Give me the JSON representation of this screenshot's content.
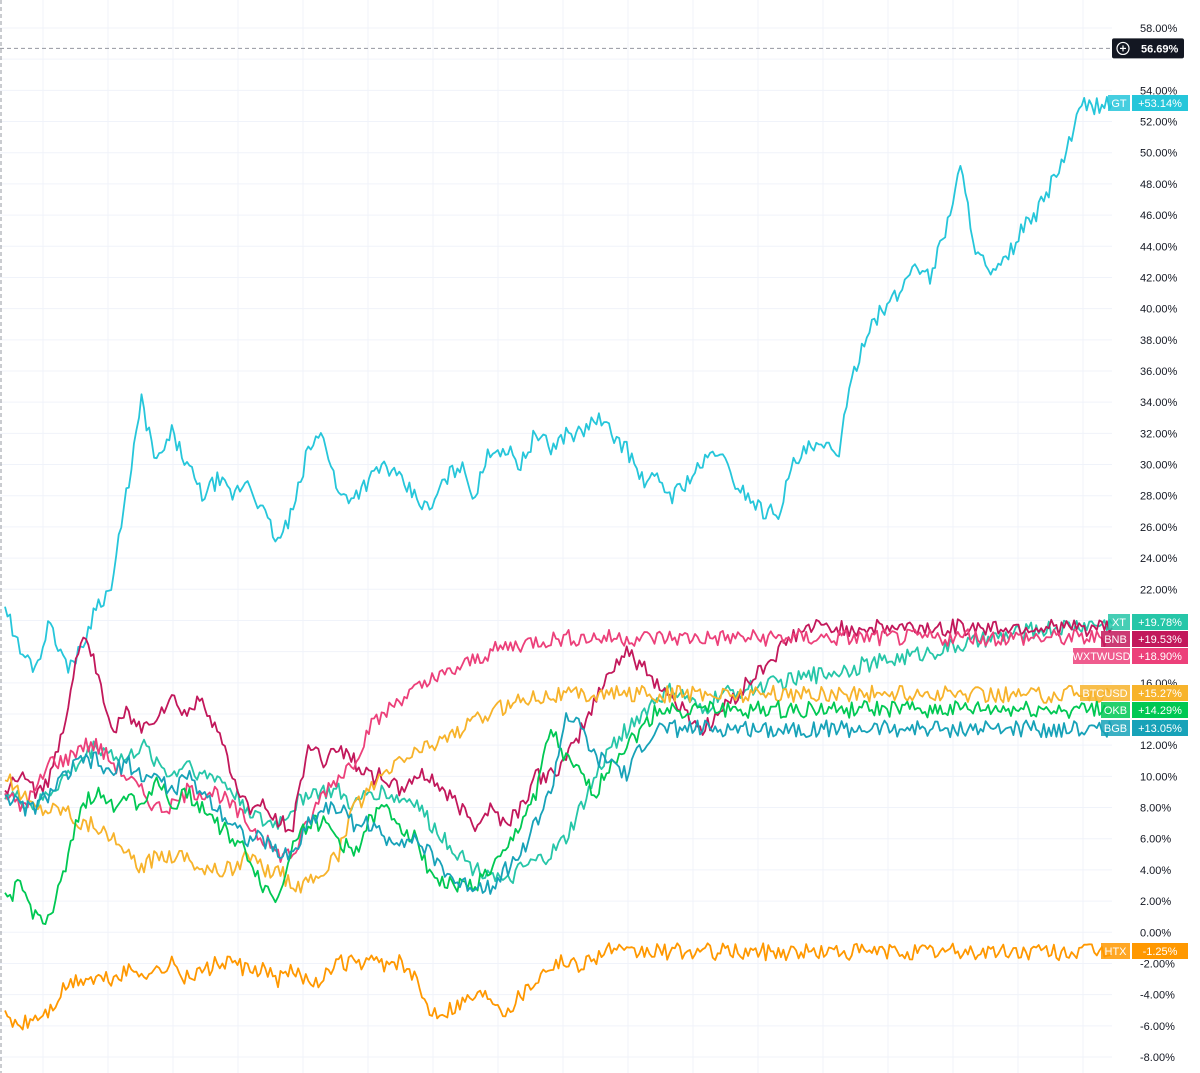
{
  "chart_data": {
    "type": "line",
    "xlabel": "",
    "ylabel": "",
    "y_unit": "%",
    "ylim": [
      -8.8,
      60
    ],
    "grid": true,
    "y_ticks": [
      58,
      56,
      54,
      52,
      50,
      48,
      46,
      44,
      42,
      40,
      38,
      36,
      34,
      32,
      30,
      28,
      26,
      24,
      22,
      20,
      18,
      16,
      14,
      12,
      10,
      8,
      6,
      4,
      2,
      0,
      -2,
      -4,
      -6,
      -8
    ],
    "y_tick_labels": [
      "58.00%",
      "",
      "54.00%",
      "52.00%",
      "50.00%",
      "48.00%",
      "46.00%",
      "44.00%",
      "42.00%",
      "40.00%",
      "38.00%",
      "36.00%",
      "34.00%",
      "32.00%",
      "30.00%",
      "28.00%",
      "26.00%",
      "24.00%",
      "22.00%",
      "",
      "",
      "16.00%",
      "",
      "12.00%",
      "10.00%",
      "8.00%",
      "6.00%",
      "4.00%",
      "2.00%",
      "0.00%",
      "-2.00%",
      "-4.00%",
      "-6.00%",
      "-8.00%"
    ],
    "crosshair": {
      "value": 56.69,
      "label": "56.69%",
      "icon": "plus-circle-icon"
    },
    "x_index_max": 73,
    "series": [
      {
        "name": "GT",
        "color": "#26c6da",
        "last_value": "+53.14%",
        "values": [
          21,
          18,
          17,
          20,
          17,
          18,
          21,
          22,
          28,
          34,
          30,
          32,
          30,
          28,
          29,
          28,
          29,
          27,
          25,
          27,
          31,
          32,
          28,
          28,
          29,
          30,
          29,
          28,
          27,
          29,
          30,
          28,
          31,
          31,
          30,
          32,
          31,
          32,
          32,
          33,
          32,
          31,
          29,
          29,
          28,
          29,
          30,
          31,
          29,
          28,
          27,
          27,
          30,
          31,
          31,
          31,
          36,
          39,
          40,
          41,
          43,
          42,
          45,
          49,
          44,
          42,
          43,
          45,
          46,
          48,
          50,
          53,
          53,
          53.14
        ]
      },
      {
        "name": "XT",
        "color": "#26c6a8",
        "last_value": "+19.78%",
        "values": [
          9,
          8.5,
          8,
          9,
          10,
          11,
          12,
          11.5,
          11,
          12,
          11,
          10,
          11,
          10,
          10,
          9,
          8,
          7,
          7,
          8,
          9,
          9,
          9,
          8,
          9,
          9,
          8.5,
          8.5,
          7,
          6,
          5,
          4,
          4,
          3,
          4,
          4.5,
          5,
          6,
          8,
          10,
          12,
          13,
          14,
          15,
          15.5,
          15,
          14,
          15.2,
          15.4,
          15.6,
          15.8,
          16,
          16.2,
          16.4,
          16.6,
          16.8,
          17,
          17.2,
          17.4,
          17.6,
          17.8,
          18,
          18.2,
          18.4,
          18.6,
          18.8,
          19,
          19.2,
          19.4,
          19.5,
          19.6,
          19.7,
          19.75,
          19.78
        ]
      },
      {
        "name": "BNB",
        "color": "#c2185b",
        "last_value": "+19.53%",
        "values": [
          9,
          10,
          9,
          10,
          14,
          19,
          17,
          13,
          14,
          13,
          14,
          15,
          14,
          15,
          13,
          10,
          8,
          8,
          7,
          7,
          12,
          11,
          12,
          11,
          10,
          10,
          9,
          10,
          10,
          9,
          8,
          7,
          8,
          7,
          8,
          10,
          10,
          11,
          13,
          15,
          17,
          18,
          17,
          16,
          15,
          14,
          13,
          14,
          15,
          16,
          17,
          18,
          19,
          19.5,
          19.53,
          19.53,
          19.53,
          19.53,
          19.53,
          19.53,
          19.53,
          19.53,
          19.53,
          19.53,
          19.53,
          19.53,
          19.53,
          19.53,
          19.53,
          19.53,
          19.53,
          19.53,
          19.53,
          19.53
        ]
      },
      {
        "name": "WXTWUSD",
        "color": "#ec407a",
        "last_value": "+18.90%",
        "values": [
          9,
          8,
          9,
          11,
          11,
          12,
          12,
          11,
          10,
          9,
          8,
          8,
          9,
          9,
          9,
          8,
          7,
          6,
          5,
          5,
          7,
          9,
          10,
          11,
          13,
          14,
          15,
          15.5,
          16,
          16.5,
          17,
          17.5,
          18,
          18.3,
          18.5,
          18.7,
          18.8,
          18.9,
          18.9,
          18.9,
          18.9,
          18.9,
          18.9,
          18.9,
          18.9,
          18.9,
          18.9,
          18.9,
          18.9,
          18.9,
          18.9,
          18.9,
          18.9,
          18.9,
          18.9,
          18.9,
          18.9,
          18.9,
          18.9,
          18.9,
          18.9,
          18.9,
          18.9,
          18.9,
          18.9,
          18.9,
          18.9,
          18.9,
          18.9,
          18.9,
          18.9,
          18.9,
          18.9,
          18.9
        ]
      },
      {
        "name": "BTCUSD",
        "color": "#f7b32b",
        "last_value": "+15.27%",
        "values": [
          10,
          9,
          8,
          8,
          8,
          7,
          7,
          6,
          5,
          4,
          5,
          5,
          5,
          4,
          4,
          4,
          5,
          4,
          4,
          3,
          3,
          4,
          5,
          8,
          9,
          10,
          11,
          11.5,
          12,
          12.5,
          13,
          13.5,
          14,
          14.5,
          15,
          15.2,
          15.27,
          15.27,
          15.27,
          15.27,
          15.27,
          15.27,
          15.27,
          15.27,
          15.27,
          15.27,
          15.27,
          15.27,
          15.27,
          15.27,
          15.27,
          15.27,
          15.27,
          15.27,
          15.27,
          15.27,
          15.27,
          15.27,
          15.27,
          15.27,
          15.27,
          15.27,
          15.27,
          15.27,
          15.27,
          15.27,
          15.27,
          15.27,
          15.27,
          15.27,
          15.27,
          15.27,
          15.27,
          15.27
        ]
      },
      {
        "name": "OKB",
        "color": "#00c853",
        "last_value": "+14.29%",
        "values": [
          2,
          3,
          1,
          1,
          4,
          8,
          9,
          8,
          9,
          8,
          10,
          8,
          9,
          8,
          7,
          6,
          5,
          3,
          2,
          6,
          7,
          7,
          6,
          5,
          7,
          8,
          7,
          6,
          4,
          3,
          3,
          3,
          4,
          5,
          7,
          9,
          13,
          11,
          10,
          9,
          11,
          12,
          13,
          14.29,
          14.29,
          14.29,
          14.29,
          14.29,
          14.29,
          14.29,
          14.29,
          14.29,
          14.29,
          14.29,
          14.29,
          14.29,
          14.29,
          14.29,
          14.29,
          14.29,
          14.29,
          14.29,
          14.29,
          14.29,
          14.29,
          14.29,
          14.29,
          14.29,
          14.29,
          14.29,
          14.29,
          14.29,
          14.29,
          14.29
        ]
      },
      {
        "name": "BGB",
        "color": "#17a2b8",
        "last_value": "+13.05%",
        "values": [
          9,
          8,
          8,
          9,
          10,
          11,
          11,
          10,
          11,
          10,
          10,
          9,
          10,
          9,
          8,
          7,
          6,
          6,
          5,
          5,
          7,
          8,
          8,
          7,
          7,
          6,
          6,
          6,
          5,
          4,
          3,
          3,
          3,
          4,
          5,
          7,
          9,
          14,
          13,
          11,
          11,
          10,
          12,
          13.05,
          13.05,
          13.05,
          13.05,
          13.05,
          13.05,
          13.05,
          13.05,
          13.05,
          13.05,
          13.05,
          13.05,
          13.05,
          13.05,
          13.05,
          13.05,
          13.05,
          13.05,
          13.05,
          13.05,
          13.05,
          13.05,
          13.05,
          13.05,
          13.05,
          13.05,
          13.05,
          13.05,
          13.05,
          13.05,
          13.05
        ]
      },
      {
        "name": "HTX",
        "color": "#ff9800",
        "last_value": "-1.25%",
        "values": [
          -5.5,
          -6,
          -5.5,
          -5,
          -3.5,
          -3,
          -3,
          -3,
          -2.5,
          -2.5,
          -2.5,
          -2,
          -3,
          -2.5,
          -2,
          -2,
          -2.5,
          -2.5,
          -3,
          -2.5,
          -3,
          -3,
          -2,
          -2,
          -2,
          -2,
          -2,
          -3,
          -5,
          -5,
          -4.5,
          -4,
          -4,
          -5,
          -4,
          -3,
          -2,
          -2,
          -2,
          -1.5,
          -1,
          -1.5,
          -1.25,
          -1.25,
          -1.25,
          -1.25,
          -1.25,
          -1.25,
          -1.25,
          -1.25,
          -1.25,
          -1.25,
          -1.25,
          -1.25,
          -1.25,
          -1.25,
          -1.25,
          -1.25,
          -1.25,
          -1.25,
          -1.25,
          -1.25,
          -1.25,
          -1.25,
          -1.25,
          -1.25,
          -1.25,
          -1.25,
          -1.25,
          -1.25,
          -1.25,
          -1.25,
          -1.25,
          -1.25
        ]
      }
    ]
  }
}
